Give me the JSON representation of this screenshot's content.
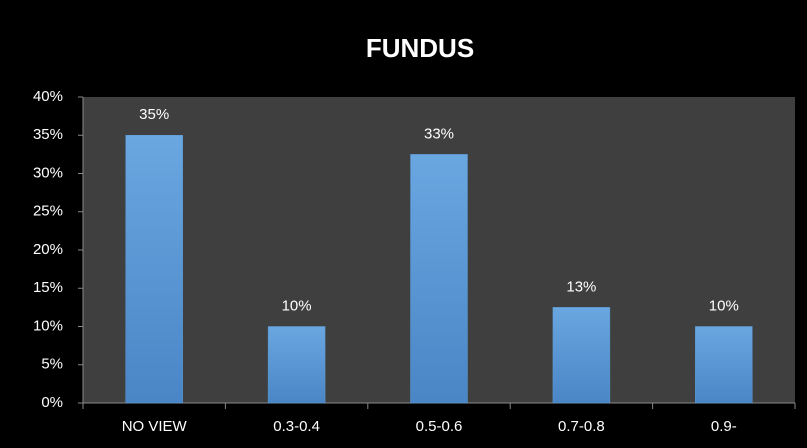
{
  "chart_data": {
    "type": "bar",
    "title": "FUNDUS",
    "categories": [
      "NO VIEW",
      "0.3-0.4",
      "0.5-0.6",
      "0.7-0.8",
      "0.9-"
    ],
    "values": [
      35,
      10,
      32.5,
      12.5,
      10
    ],
    "value_labels": [
      "35%",
      "10%",
      "33%",
      "13%",
      "10%"
    ],
    "color": "#5b9bd5",
    "ylim": [
      0,
      40
    ],
    "yticks": [
      {
        "value": 0,
        "label": "0%"
      },
      {
        "value": 5,
        "label": "5%"
      },
      {
        "value": 10,
        "label": "10%"
      },
      {
        "value": 15,
        "label": "15%"
      },
      {
        "value": 20,
        "label": "20%"
      },
      {
        "value": 25,
        "label": "25%"
      },
      {
        "value": 30,
        "label": "30%"
      },
      {
        "value": 35,
        "label": "35%"
      },
      {
        "value": 40,
        "label": "40%"
      }
    ],
    "grid": false
  }
}
